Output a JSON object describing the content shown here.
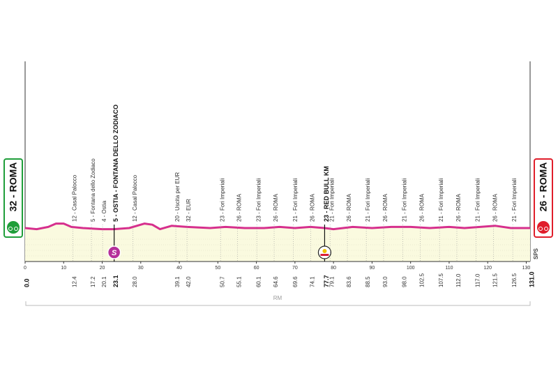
{
  "chart_data": {
    "type": "area",
    "color": "#d62f8d",
    "fill": "#fafadf",
    "xlim": [
      0,
      131
    ],
    "ylim": [
      0,
      100
    ],
    "xticks": [
      0,
      10,
      20,
      30,
      40,
      50,
      60,
      70,
      80,
      90,
      100,
      110,
      120,
      130
    ],
    "x": [
      0,
      3,
      6,
      8,
      10,
      12,
      15,
      20,
      23,
      27,
      31,
      33,
      35,
      38,
      42,
      48,
      52,
      57,
      62,
      66,
      70,
      74,
      77.7,
      80,
      85,
      90,
      95,
      100,
      105,
      110,
      114,
      118,
      122,
      126,
      131
    ],
    "values": [
      30,
      29,
      31,
      34,
      34,
      31,
      30,
      29,
      29,
      30,
      34,
      33,
      29,
      32,
      31,
      30,
      31,
      30,
      30,
      31,
      30,
      31,
      30,
      29,
      31,
      30,
      31,
      31,
      30,
      31,
      30,
      31,
      32,
      30,
      30
    ],
    "start": {
      "name": "32 - ROMA",
      "km": {
        "value": 0,
        "label": "0.0"
      },
      "color": "#1f9e3a"
    },
    "finish": {
      "name": "26 - ROMA",
      "km": {
        "value": 131,
        "label": "131.0"
      },
      "color": "#e01e2b"
    },
    "waypoints": [
      {
        "km": 12.4,
        "name": "12 - Casal Palocco"
      },
      {
        "km": 17.2,
        "name": "5 - Fontana dello Zodiaco"
      },
      {
        "km": 20.1,
        "name": "4 - Ostia"
      },
      {
        "km": 23.1,
        "name": "5 - OSTIA - FONTANA DELLO ZODIACO",
        "bold": true,
        "marker": "sprint"
      },
      {
        "km": {
          "value": 28,
          "label": "28.0"
        },
        "name": "12 - Casal Palocco"
      },
      {
        "km": 39.1,
        "name": "20 - Uscita per EUR"
      },
      {
        "km": {
          "value": 42,
          "label": "42.0"
        },
        "name": "32 - EUR"
      },
      {
        "km": 50.7,
        "name": "23 - Fori Imperiali"
      },
      {
        "km": 55.1,
        "name": "26 - ROMA"
      },
      {
        "km": 60.1,
        "name": "23 - Fori Imperiali"
      },
      {
        "km": 64.6,
        "name": "26 - ROMA"
      },
      {
        "km": 69.6,
        "name": "21 - Fori Imperiali"
      },
      {
        "km": 74.1,
        "name": "26 - ROMA"
      },
      {
        "km": 77.7,
        "name": "23 - RED BULL KM",
        "bold": true,
        "marker": "redbull"
      },
      {
        "km": 79.1,
        "name": "21 - Fori Imperiali"
      },
      {
        "km": 83.6,
        "name": "26 - ROMA"
      },
      {
        "km": 88.5,
        "name": "21 - Fori Imperiali"
      },
      {
        "km": {
          "value": 93,
          "label": "93.0"
        },
        "name": "26 - ROMA"
      },
      {
        "km": {
          "value": 98,
          "label": "98.0"
        },
        "name": "21 - Fori Imperiali"
      },
      {
        "km": 102.5,
        "name": "26 - ROMA"
      },
      {
        "km": 107.5,
        "name": "21 - Fori Imperiali"
      },
      {
        "km": {
          "value": 112,
          "label": "112.0"
        },
        "name": "26 - ROMA"
      },
      {
        "km": {
          "value": 117,
          "label": "117.0"
        },
        "name": "21 - Fori Imperiali"
      },
      {
        "km": 121.5,
        "name": "26 - ROMA"
      },
      {
        "km": 126.5,
        "name": "21 - Fori Imperiali"
      }
    ],
    "sprint_icon": "S",
    "footer": "RM",
    "logo": "SPS"
  }
}
